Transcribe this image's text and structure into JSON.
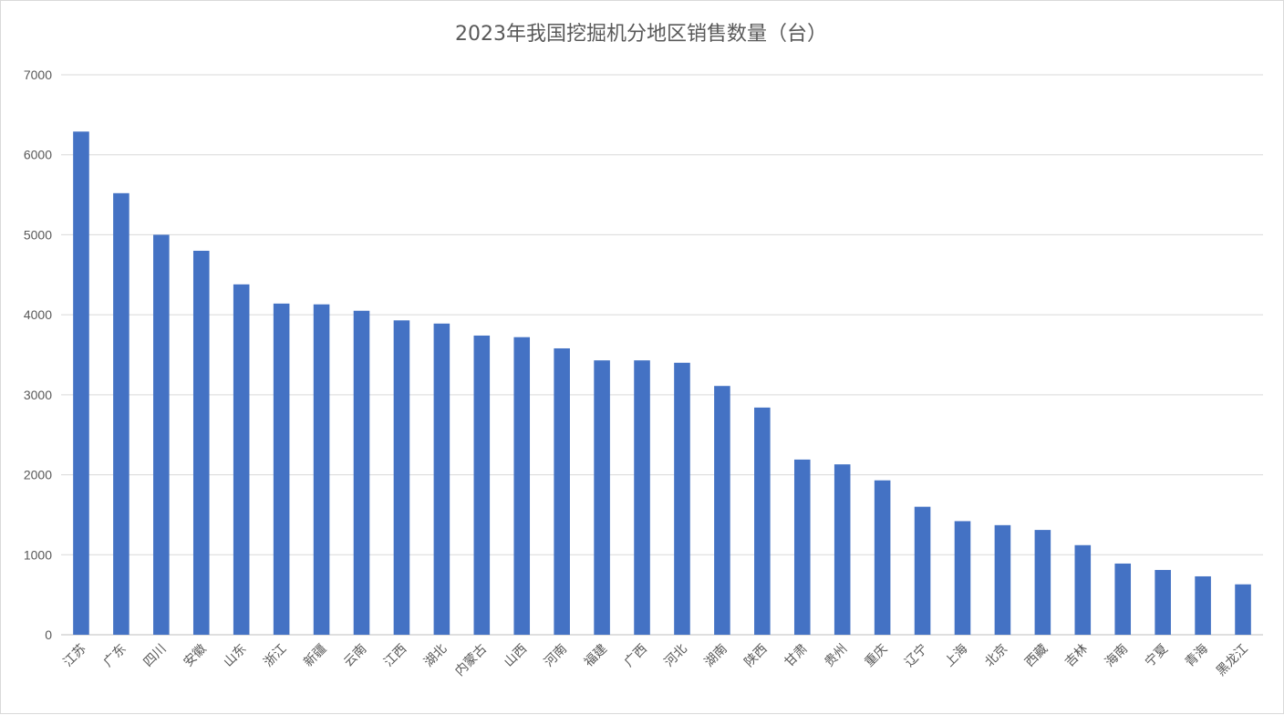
{
  "chart_data": {
    "type": "bar",
    "title": "2023年我国挖掘机分地区销售数量（台）",
    "xlabel": "",
    "ylabel": "",
    "ylim": [
      0,
      7000
    ],
    "yticks": [
      0,
      1000,
      2000,
      3000,
      4000,
      5000,
      6000,
      7000
    ],
    "grid": true,
    "legend": "none",
    "bar_color": "#4472C4",
    "categories": [
      "江苏",
      "广东",
      "四川",
      "安徽",
      "山东",
      "浙江",
      "新疆",
      "云南",
      "江西",
      "湖北",
      "内蒙古",
      "山西",
      "河南",
      "福建",
      "广西",
      "河北",
      "湖南",
      "陕西",
      "甘肃",
      "贵州",
      "重庆",
      "辽宁",
      "上海",
      "北京",
      "西藏",
      "吉林",
      "海南",
      "宁夏",
      "青海",
      "黑龙江"
    ],
    "values": [
      6290,
      5520,
      5000,
      4800,
      4380,
      4140,
      4130,
      4050,
      3930,
      3890,
      3740,
      3720,
      3580,
      3430,
      3430,
      3400,
      3110,
      2840,
      2190,
      2130,
      1930,
      1600,
      1420,
      1370,
      1310,
      1120,
      890,
      810,
      730,
      630
    ]
  }
}
